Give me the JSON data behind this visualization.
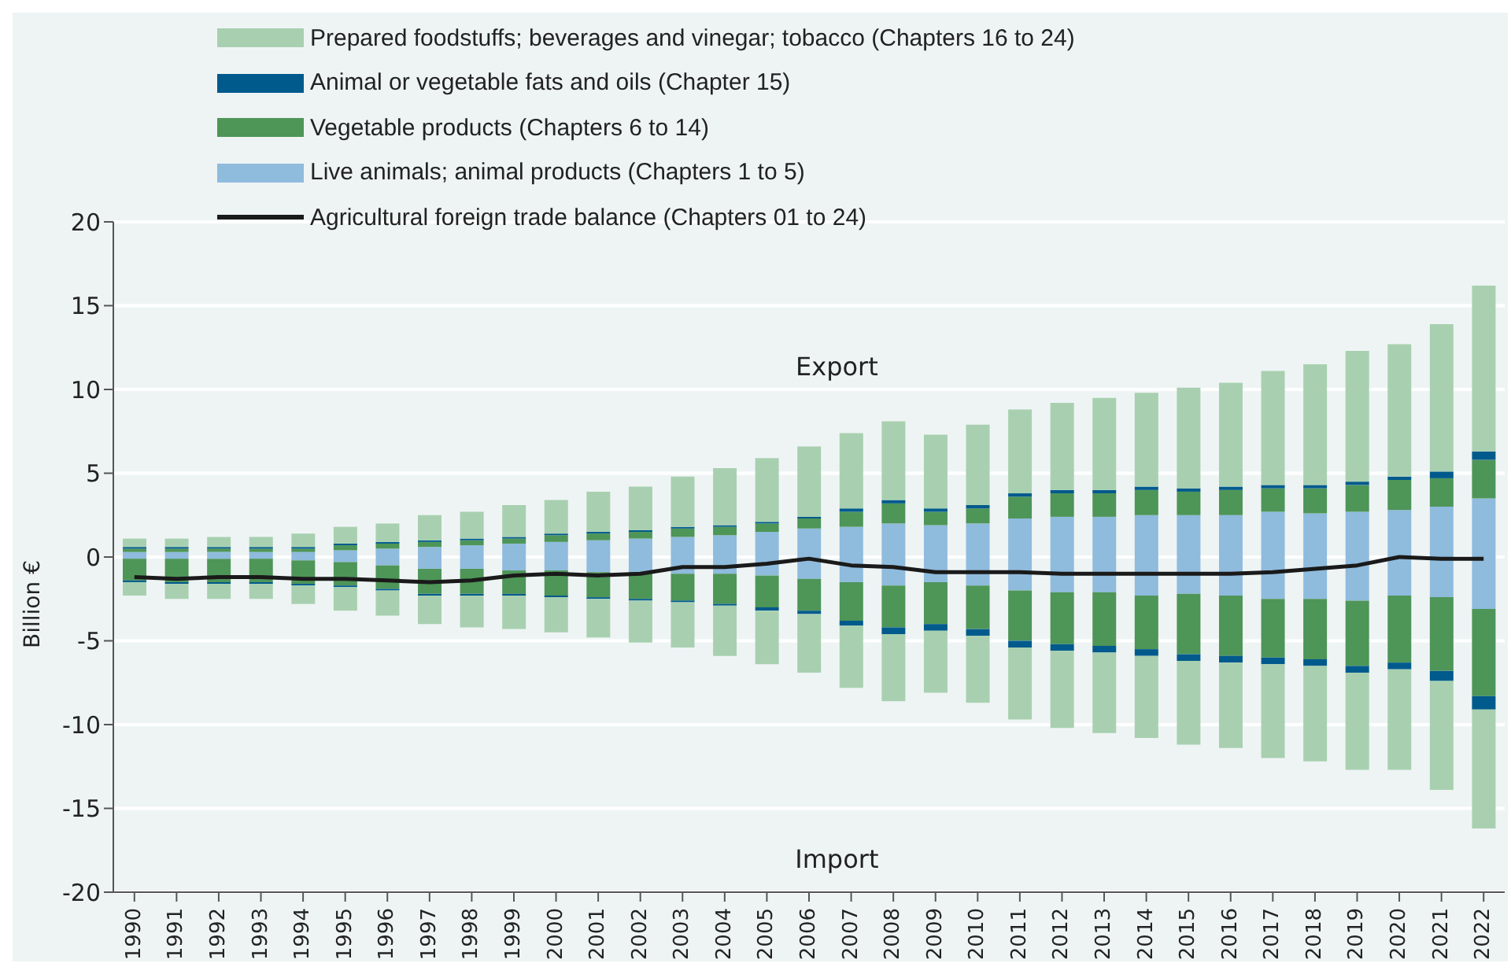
{
  "chart_data": {
    "type": "bar",
    "stacked": true,
    "ylabel": "Billion €",
    "legend": "top left",
    "grid": "y",
    "ylim": [
      -20,
      20
    ],
    "yticks": [
      -20,
      -15,
      -10,
      -5,
      0,
      5,
      10,
      15,
      20
    ],
    "annotations": [
      "Export",
      "Import"
    ],
    "categories": [
      "1990",
      "1991",
      "1992",
      "1993",
      "1994",
      "1995",
      "1996",
      "1997",
      "1998",
      "1999",
      "2000",
      "2001",
      "2002",
      "2003",
      "2004",
      "2005",
      "2006",
      "2007",
      "2008",
      "2009",
      "2010",
      "2011",
      "2012",
      "2013",
      "2014",
      "2015",
      "2016",
      "2017",
      "2018",
      "2019",
      "2020",
      "2021",
      "2022"
    ],
    "series": [
      {
        "name": "Live animals; animal products (Chapters 1 to 5)",
        "color": "#8fbbdd",
        "values": [
          0.3,
          0.3,
          0.3,
          0.3,
          0.3,
          0.4,
          0.5,
          0.6,
          0.7,
          0.8,
          0.9,
          1.0,
          1.1,
          1.2,
          1.3,
          1.5,
          1.7,
          1.8,
          2.0,
          1.9,
          2.0,
          2.3,
          2.4,
          2.4,
          2.5,
          2.5,
          2.5,
          2.7,
          2.6,
          2.7,
          2.8,
          3.0,
          3.5
        ]
      },
      {
        "name": "Vegetable products (Chapters 6 to 14)",
        "color": "#4e9558",
        "values": [
          0.2,
          0.2,
          0.2,
          0.2,
          0.2,
          0.3,
          0.3,
          0.3,
          0.3,
          0.3,
          0.4,
          0.4,
          0.4,
          0.5,
          0.5,
          0.5,
          0.6,
          0.9,
          1.2,
          0.8,
          0.9,
          1.3,
          1.4,
          1.4,
          1.5,
          1.4,
          1.5,
          1.4,
          1.5,
          1.6,
          1.8,
          1.7,
          2.3
        ]
      },
      {
        "name": "Animal or vegetable fats and oils (Chapter 15)",
        "color": "#005a8c",
        "values": [
          0.1,
          0.1,
          0.1,
          0.1,
          0.1,
          0.1,
          0.1,
          0.1,
          0.1,
          0.1,
          0.1,
          0.1,
          0.1,
          0.1,
          0.1,
          0.1,
          0.1,
          0.2,
          0.2,
          0.2,
          0.2,
          0.2,
          0.2,
          0.2,
          0.2,
          0.2,
          0.2,
          0.2,
          0.2,
          0.2,
          0.2,
          0.4,
          0.5
        ]
      },
      {
        "name": "Prepared foodstuffs; beverages and vinegar; tobacco (Chapters 16 to 24)",
        "color": "#a8d0b0",
        "values": [
          0.5,
          0.5,
          0.6,
          0.6,
          0.8,
          1.0,
          1.1,
          1.5,
          1.6,
          1.9,
          2.0,
          2.4,
          2.6,
          3.0,
          3.4,
          3.8,
          4.2,
          4.5,
          4.7,
          4.4,
          4.8,
          5.0,
          5.2,
          5.5,
          5.6,
          6.0,
          6.2,
          6.8,
          7.2,
          7.8,
          7.9,
          8.8,
          9.9
        ]
      },
      {
        "color": "#8fbbdd",
        "values": [
          -0.1,
          -0.1,
          -0.1,
          -0.1,
          -0.2,
          -0.3,
          -0.5,
          -0.7,
          -0.7,
          -0.8,
          -0.8,
          -0.9,
          -0.9,
          -1.0,
          -1.0,
          -1.1,
          -1.3,
          -1.5,
          -1.7,
          -1.5,
          -1.7,
          -2.0,
          -2.1,
          -2.1,
          -2.3,
          -2.2,
          -2.3,
          -2.5,
          -2.5,
          -2.6,
          -2.3,
          -2.4,
          -3.1
        ]
      },
      {
        "color": "#4e9558",
        "values": [
          -1.3,
          -1.4,
          -1.4,
          -1.4,
          -1.4,
          -1.4,
          -1.4,
          -1.5,
          -1.5,
          -1.4,
          -1.5,
          -1.5,
          -1.6,
          -1.6,
          -1.8,
          -1.9,
          -1.9,
          -2.3,
          -2.5,
          -2.5,
          -2.6,
          -3.0,
          -3.1,
          -3.2,
          -3.2,
          -3.6,
          -3.6,
          -3.5,
          -3.6,
          -3.9,
          -4.0,
          -4.4,
          -5.2
        ]
      },
      {
        "color": "#005a8c",
        "values": [
          -0.1,
          -0.1,
          -0.1,
          -0.1,
          -0.1,
          -0.1,
          -0.1,
          -0.1,
          -0.1,
          -0.1,
          -0.1,
          -0.1,
          -0.1,
          -0.1,
          -0.1,
          -0.2,
          -0.2,
          -0.3,
          -0.4,
          -0.4,
          -0.4,
          -0.4,
          -0.4,
          -0.4,
          -0.4,
          -0.4,
          -0.4,
          -0.4,
          -0.4,
          -0.4,
          -0.4,
          -0.6,
          -0.8
        ]
      },
      {
        "color": "#a8d0b0",
        "values": [
          -0.8,
          -0.9,
          -0.9,
          -0.9,
          -1.1,
          -1.4,
          -1.5,
          -1.7,
          -1.9,
          -2.0,
          -2.1,
          -2.3,
          -2.5,
          -2.7,
          -3.0,
          -3.2,
          -3.5,
          -3.7,
          -4.0,
          -3.7,
          -4.0,
          -4.3,
          -4.6,
          -4.8,
          -4.9,
          -5.0,
          -5.1,
          -5.6,
          -5.7,
          -5.8,
          -6.0,
          -6.5,
          -7.1
        ]
      },
      {
        "name": "Agricultural foreign trade balance (Chapters 01 to 24)",
        "type": "line",
        "color": "#1a1a1a",
        "values": [
          -1.2,
          -1.3,
          -1.2,
          -1.2,
          -1.3,
          -1.3,
          -1.4,
          -1.5,
          -1.4,
          -1.1,
          -1.0,
          -1.1,
          -1.0,
          -0.6,
          -0.6,
          -0.4,
          -0.1,
          -0.5,
          -0.6,
          -0.9,
          -0.9,
          -0.9,
          -1.0,
          -1.0,
          -1.0,
          -1.0,
          -1.0,
          -0.9,
          -0.7,
          -0.5,
          0.0,
          -0.1,
          -0.1
        ]
      }
    ]
  }
}
